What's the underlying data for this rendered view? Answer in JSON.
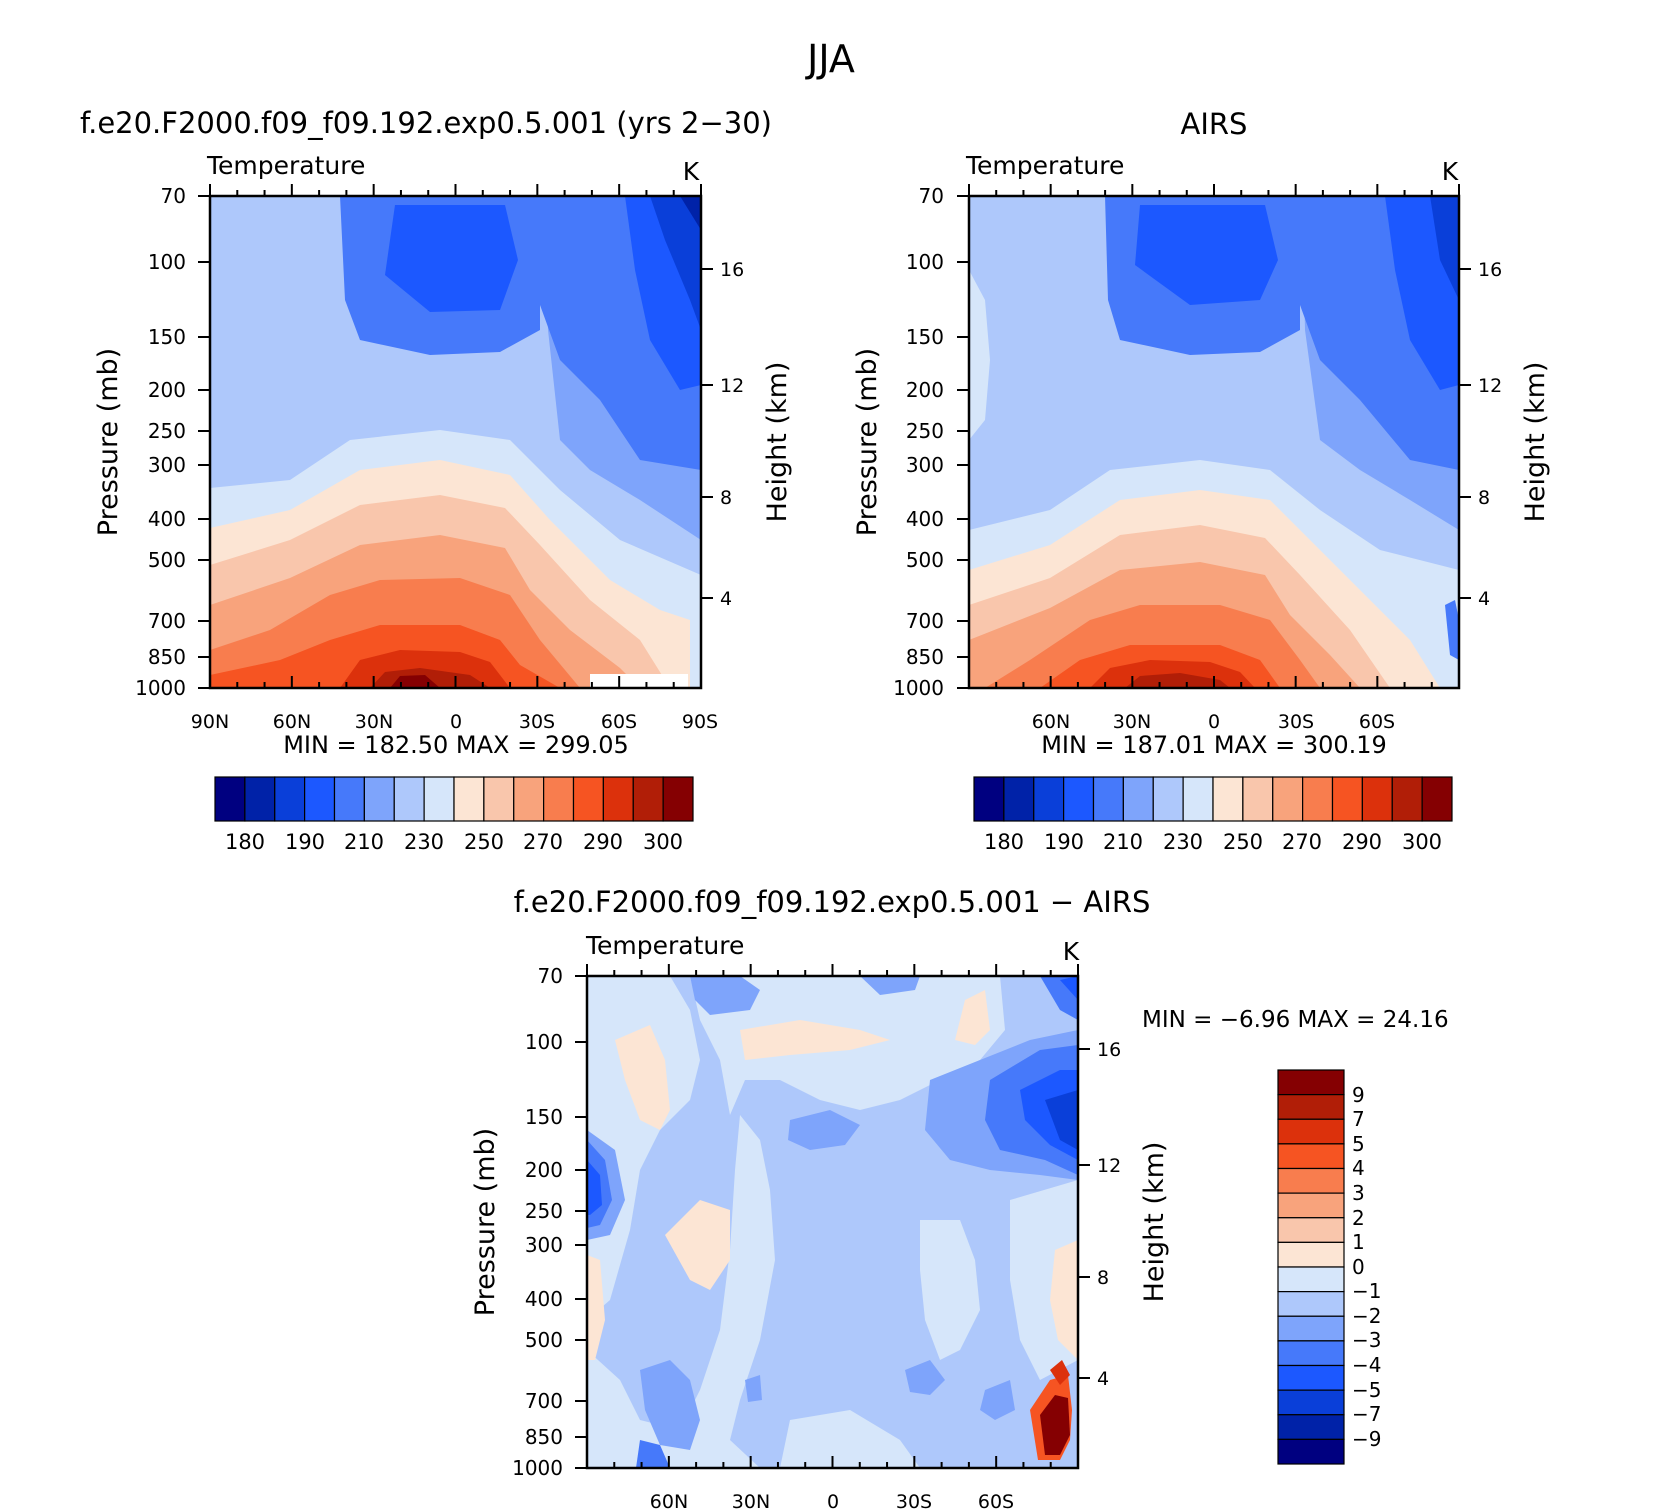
{
  "figure_title": "JJA",
  "colors": {
    "abs_scale": [
      "#000080",
      "#0022A8",
      "#0A3FD9",
      "#1C58FF",
      "#4679FA",
      "#7EA4FB",
      "#AEC8FB",
      "#D6E6FA",
      "#FCE5D4",
      "#F9C6AC",
      "#F8A37C",
      "#F87D4E",
      "#F65422",
      "#DC310C",
      "#B11E07",
      "#850002"
    ],
    "diff_scale": [
      "#000080",
      "#0022A8",
      "#0A3FD9",
      "#1C58FF",
      "#4679FA",
      "#7EA4FB",
      "#AEC8FB",
      "#D6E6FA",
      "#FCE5D4",
      "#F9C6AC",
      "#F8A37C",
      "#F87D4E",
      "#F65422",
      "#DC310C",
      "#B11E07",
      "#850002"
    ]
  },
  "chart_data": [
    {
      "type": "heatmap",
      "id": "model",
      "title": "f.e20.F2000.f09_f09.192.exp0.5.001 (yrs 2−30)",
      "left_label": "Temperature",
      "right_label": "K",
      "ylabel": "Pressure (mb)",
      "y2label": "Height (km)",
      "x_ticks": [
        "90N",
        "60N",
        "30N",
        "0",
        "30S",
        "60S",
        "90S"
      ],
      "y_ticks": [
        "70",
        "100",
        "150",
        "200",
        "250",
        "300",
        "400",
        "500",
        "700",
        "850",
        "1000"
      ],
      "y2_ticks": [
        "16",
        "12",
        "8",
        "4"
      ],
      "stats_text": "MIN = 182.50 MAX = 299.05",
      "min": 182.5,
      "max": 299.05,
      "colorbar_labels": [
        "180",
        "190",
        "210",
        "230",
        "250",
        "270",
        "290",
        "300"
      ]
    },
    {
      "type": "heatmap",
      "id": "obs",
      "title": "AIRS",
      "left_label": "Temperature",
      "right_label": "K",
      "ylabel": "Pressure (mb)",
      "y2label": "Height (km)",
      "x_ticks": [
        "60N",
        "30N",
        "0",
        "30S",
        "60S"
      ],
      "y_ticks": [
        "70",
        "100",
        "150",
        "200",
        "250",
        "300",
        "400",
        "500",
        "700",
        "850",
        "1000"
      ],
      "y2_ticks": [
        "16",
        "12",
        "8",
        "4"
      ],
      "stats_text": "MIN = 187.01 MAX = 300.19",
      "min": 187.01,
      "max": 300.19,
      "colorbar_labels": [
        "180",
        "190",
        "210",
        "230",
        "250",
        "270",
        "290",
        "300"
      ]
    },
    {
      "type": "heatmap",
      "id": "diff",
      "title": "f.e20.F2000.f09_f09.192.exp0.5.001 − AIRS",
      "left_label": "Temperature",
      "right_label": "K",
      "ylabel": "Pressure (mb)",
      "y2label": "Height (km)",
      "x_ticks": [
        "60N",
        "30N",
        "0",
        "30S",
        "60S"
      ],
      "y_ticks": [
        "70",
        "100",
        "150",
        "200",
        "250",
        "300",
        "400",
        "500",
        "700",
        "850",
        "1000"
      ],
      "y2_ticks": [
        "16",
        "12",
        "8",
        "4"
      ],
      "stats_text": "MIN = −6.96 MAX = 24.16",
      "min": -6.96,
      "max": 24.16,
      "colorbar_labels": [
        "9",
        "7",
        "5",
        "4",
        "3",
        "2",
        "1",
        "0",
        "−1",
        "−2",
        "−3",
        "−4",
        "−5",
        "−7",
        "−9"
      ]
    }
  ]
}
